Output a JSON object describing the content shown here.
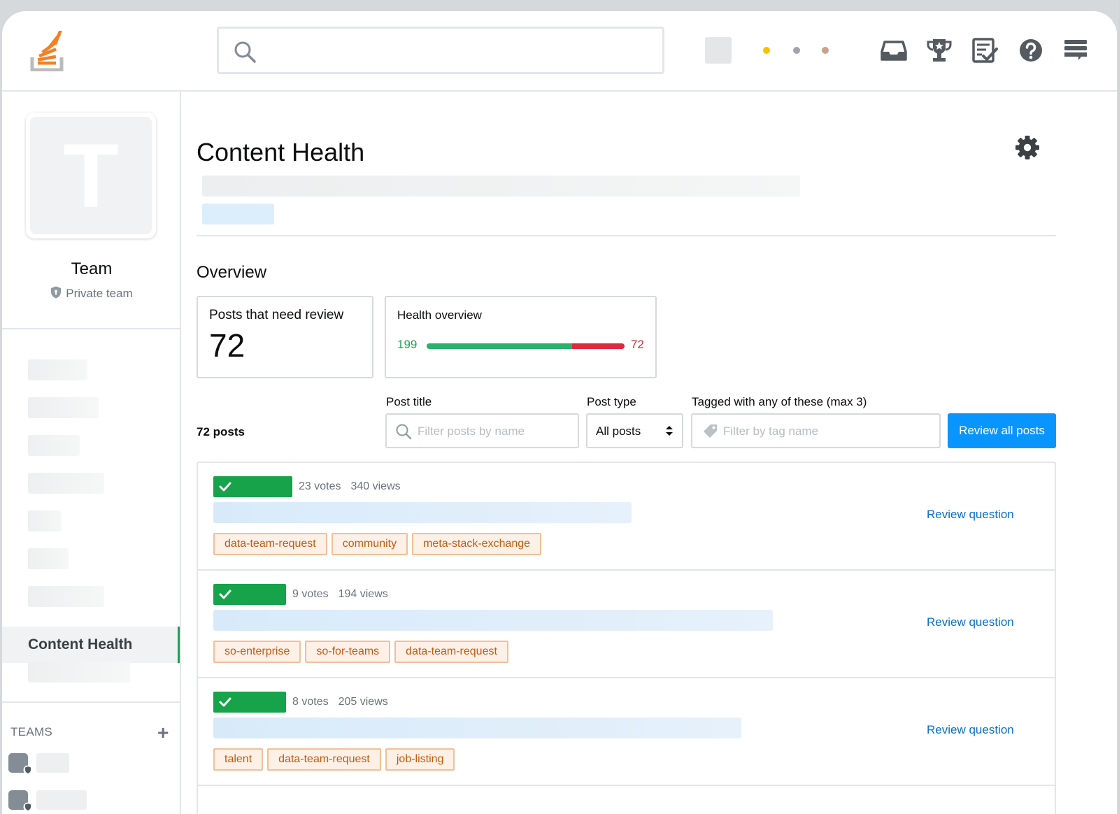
{
  "colors": {
    "accent_blue": "#0995ff",
    "link_blue": "#0a70c9",
    "good_green": "#1f9f52",
    "bad_red": "#d1283a",
    "tag_orange": "#c45a0d",
    "logo_orange": "#f48024"
  },
  "topbar": {
    "search_icon": "search-icon",
    "icons": [
      "inbox-icon",
      "trophy-icon",
      "review-queue-icon",
      "help-icon",
      "site-switcher-icon"
    ],
    "status_dots": [
      "#f6c200",
      "#a0a4a8",
      "#c9a28b"
    ]
  },
  "sidebar": {
    "team_letter": "T",
    "team_name": "Team",
    "team_visibility": "Private team",
    "active_item": "Content Health",
    "teams_label": "TEAMS",
    "teams_add": "+"
  },
  "main": {
    "page_title": "Content Health",
    "overview_title": "Overview",
    "cards": {
      "needs_review_label": "Posts that need review",
      "needs_review_value": "72",
      "health_label": "Health overview",
      "health_good": "199",
      "health_bad": "72",
      "health_good_fraction": 0.7343
    },
    "filters": {
      "posts_count": "72 posts",
      "post_title_label": "Post title",
      "post_title_placeholder": "Filter posts by name",
      "post_type_label": "Post type",
      "post_type_value": "All posts",
      "tags_label": "Tagged with any of these (max 3)",
      "tags_placeholder": "Filter by tag name",
      "review_all_label": "Review all posts"
    },
    "posts": [
      {
        "votes": "23 votes",
        "views": "340 views",
        "action": "Review question",
        "tags": [
          "data-team-request",
          "community",
          "meta-stack-exchange"
        ]
      },
      {
        "votes": "9 votes",
        "views": "194 views",
        "action": "Review question",
        "tags": [
          "so-enterprise",
          "so-for-teams",
          "data-team-request"
        ]
      },
      {
        "votes": "8 votes",
        "views": "205 views",
        "action": "Review question",
        "tags": [
          "talent",
          "data-team-request",
          "job-listing"
        ]
      }
    ]
  }
}
